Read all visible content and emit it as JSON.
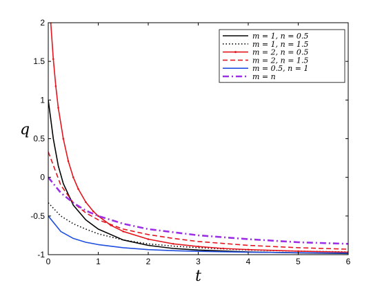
{
  "chart_data": {
    "type": "line",
    "xlabel": "t",
    "ylabel": "q",
    "xlim": [
      0,
      6
    ],
    "ylim": [
      -1,
      2
    ],
    "x_ticks": [
      "0",
      "1",
      "2",
      "3",
      "4",
      "5",
      "6"
    ],
    "y_ticks": [
      "-1",
      "-0.5",
      "0",
      "0.5",
      "1",
      "1.5",
      "2"
    ],
    "grid": false,
    "legend_position": "top-right",
    "series": [
      {
        "name": "m = 1, n = 0.5",
        "color": "#000000",
        "style": "solid",
        "x": [
          0,
          0.1,
          0.2,
          0.3,
          0.5,
          0.75,
          1,
          1.5,
          2,
          2.5,
          3,
          4,
          5,
          6
        ],
        "y": [
          1.0,
          0.5,
          0.15,
          -0.08,
          -0.36,
          -0.55,
          -0.67,
          -0.81,
          -0.88,
          -0.92,
          -0.94,
          -0.965,
          -0.977,
          -0.985
        ]
      },
      {
        "name": "m = 1, n = 1.5",
        "color": "#000000",
        "style": "dotted",
        "x": [
          0,
          0.25,
          0.5,
          0.75,
          1,
          1.5,
          2,
          2.5,
          3,
          4,
          5,
          6
        ],
        "y": [
          -0.33,
          -0.5,
          -0.6,
          -0.67,
          -0.73,
          -0.81,
          -0.86,
          -0.89,
          -0.91,
          -0.94,
          -0.955,
          -0.965
        ]
      },
      {
        "name": "m = 2, n = 0.5",
        "color": "#e4141c",
        "style": "solid-dot",
        "x": [
          0.05,
          0.1,
          0.15,
          0.2,
          0.3,
          0.4,
          0.5,
          0.6,
          0.75,
          0.9,
          1,
          1.25,
          1.5,
          2,
          2.5,
          3,
          3.5,
          4,
          5,
          6
        ],
        "y": [
          2.0,
          1.53,
          1.18,
          0.9,
          0.5,
          0.21,
          0.0,
          -0.15,
          -0.32,
          -0.44,
          -0.5,
          -0.62,
          -0.7,
          -0.8,
          -0.86,
          -0.895,
          -0.92,
          -0.935,
          -0.955,
          -0.968
        ]
      },
      {
        "name": "m = 2, n = 1.5",
        "color": "#e4141c",
        "style": "dashed",
        "x": [
          0,
          0.25,
          0.5,
          0.75,
          1,
          1.5,
          2,
          2.5,
          3,
          4,
          5,
          6
        ],
        "y": [
          0.33,
          -0.1,
          -0.33,
          -0.46,
          -0.55,
          -0.67,
          -0.74,
          -0.79,
          -0.83,
          -0.88,
          -0.91,
          -0.93
        ]
      },
      {
        "name": "m = 0.5, n = 1",
        "color": "#1f4de0",
        "style": "solid",
        "x": [
          0,
          0.25,
          0.5,
          0.75,
          1,
          1.5,
          2,
          2.5,
          3,
          4,
          5,
          6
        ],
        "y": [
          -0.5,
          -0.7,
          -0.79,
          -0.84,
          -0.87,
          -0.91,
          -0.935,
          -0.948,
          -0.957,
          -0.968,
          -0.975,
          -0.98
        ]
      },
      {
        "name": "m = n",
        "color": "#9b2ee6",
        "style": "dashdot",
        "x": [
          0,
          0.25,
          0.5,
          0.75,
          1,
          1.5,
          2,
          2.5,
          3,
          4,
          5,
          6
        ],
        "y": [
          0.0,
          -0.2,
          -0.33,
          -0.43,
          -0.5,
          -0.6,
          -0.67,
          -0.71,
          -0.75,
          -0.8,
          -0.84,
          -0.86
        ]
      }
    ]
  }
}
